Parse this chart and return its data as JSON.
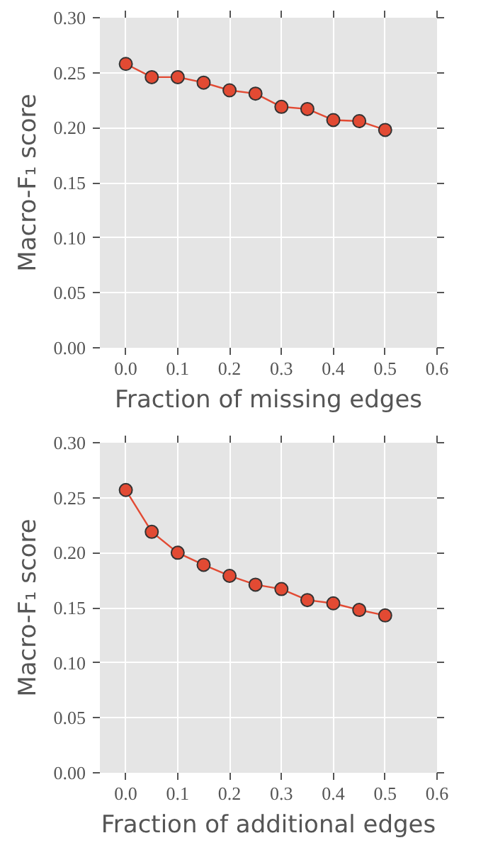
{
  "chart_data": [
    {
      "type": "line",
      "xlabel": "Fraction of missing edges",
      "ylabel": "Macro-F₁ score",
      "x": [
        0.0,
        0.05,
        0.1,
        0.15,
        0.2,
        0.25,
        0.3,
        0.35,
        0.4,
        0.45,
        0.5
      ],
      "series": [
        {
          "color": "#e24a33",
          "values": [
            0.258,
            0.246,
            0.246,
            0.241,
            0.234,
            0.231,
            0.219,
            0.217,
            0.207,
            0.206,
            0.198
          ]
        }
      ],
      "xlim": [
        -0.05,
        0.6
      ],
      "xticks": [
        {
          "value": 0,
          "label": "0.0"
        },
        0.1,
        0.2,
        0.3,
        0.4,
        0.5,
        0.6
      ],
      "ylim": [
        0.0,
        0.3
      ],
      "yticks": [
        {
          "value": 0,
          "label": "0.00"
        },
        {
          "value": 0.05,
          "label": "0.05"
        },
        {
          "value": 0.1,
          "label": "0.10"
        },
        {
          "value": 0.15,
          "label": "0.15"
        },
        {
          "value": 0.2,
          "label": "0.20"
        },
        {
          "value": 0.25,
          "label": "0.25"
        },
        {
          "value": 0.3,
          "label": "0.30"
        }
      ],
      "grid": true,
      "marker": "circle",
      "line_style": "solid"
    },
    {
      "type": "line",
      "xlabel": "Fraction of additional edges",
      "ylabel": "Macro-F₁ score",
      "x": [
        0.0,
        0.05,
        0.1,
        0.15,
        0.2,
        0.25,
        0.3,
        0.35,
        0.4,
        0.45,
        0.5
      ],
      "series": [
        {
          "color": "#e24a33",
          "values": [
            0.257,
            0.219,
            0.2,
            0.189,
            0.179,
            0.171,
            0.167,
            0.157,
            0.154,
            0.148,
            0.143
          ]
        }
      ],
      "xlim": [
        -0.05,
        0.6
      ],
      "xticks": [
        {
          "value": 0,
          "label": "0.0"
        },
        0.1,
        0.2,
        0.3,
        0.4,
        0.5,
        0.6
      ],
      "ylim": [
        0.0,
        0.3
      ],
      "yticks": [
        {
          "value": 0,
          "label": "0.00"
        },
        {
          "value": 0.05,
          "label": "0.05"
        },
        {
          "value": 0.1,
          "label": "0.10"
        },
        {
          "value": 0.15,
          "label": "0.15"
        },
        {
          "value": 0.2,
          "label": "0.20"
        },
        {
          "value": 0.25,
          "label": "0.25"
        },
        {
          "value": 0.3,
          "label": "0.30"
        }
      ],
      "grid": true,
      "marker": "circle",
      "line_style": "solid"
    }
  ]
}
